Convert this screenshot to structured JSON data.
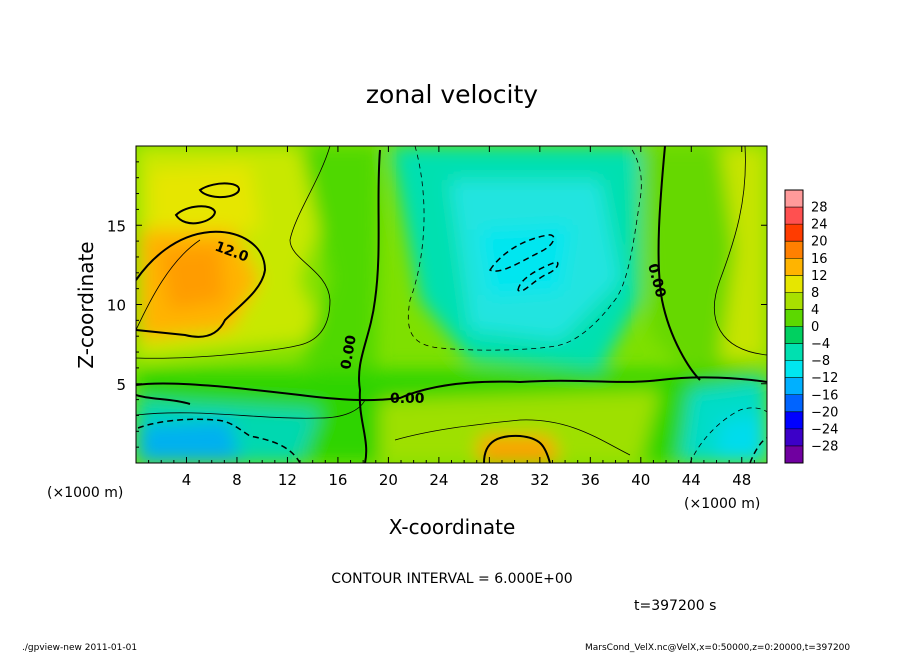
{
  "chart_data": {
    "type": "heatmap",
    "title": "zonal velocity",
    "xlabel": "X-coordinate",
    "ylabel": "Z-coordinate",
    "x_unit": "(×1000 m)",
    "y_unit": "(×1000 m)",
    "xlim": [
      0,
      50
    ],
    "ylim": [
      0,
      20
    ],
    "x_ticks": [
      4,
      8,
      12,
      16,
      20,
      24,
      28,
      32,
      36,
      40,
      44,
      48
    ],
    "y_ticks": [
      5,
      10,
      15
    ],
    "contour_interval_text": "CONTOUR INTERVAL = 6.000E+00",
    "time_text": "t=397200 s",
    "contour_labels": [
      "12.0",
      "0.00",
      "0.00",
      "0.00"
    ],
    "colorbar": {
      "levels": [
        28,
        24,
        20,
        16,
        12,
        8,
        4,
        0,
        -4,
        -8,
        -12,
        -16,
        -20,
        -24,
        -28
      ],
      "level_labels": [
        "28",
        "24",
        "20",
        "16",
        "12",
        "8",
        "4",
        "0",
        "−4",
        "−8",
        "−12",
        "−16",
        "−20",
        "−24",
        "−28"
      ],
      "colors": [
        "#ff9a9a",
        "#ff5050",
        "#ff3c00",
        "#ff8000",
        "#ffb400",
        "#e6e600",
        "#a8e000",
        "#5cd800",
        "#00d060",
        "#00e0b0",
        "#00e6f0",
        "#00b0ff",
        "#0064ff",
        "#0000ff",
        "#3c00c8",
        "#7000a0"
      ]
    },
    "features": [
      {
        "x": 6,
        "z": 11.5,
        "value": 14
      },
      {
        "x": 4,
        "z": 17,
        "value": 10
      },
      {
        "x": 30,
        "z": 13,
        "value": -10
      },
      {
        "x": 31,
        "z": 1,
        "value": 14
      },
      {
        "x": 5,
        "z": 2,
        "value": -14
      },
      {
        "x": 46,
        "z": 2,
        "value": -8
      },
      {
        "x": 48,
        "z": 9,
        "value": 8
      }
    ]
  },
  "footer": {
    "left": "./gpview-new   2011-01-01",
    "right": "MarsCond_VelX.nc@VelX,x=0:50000,z=0:20000,t=397200"
  }
}
